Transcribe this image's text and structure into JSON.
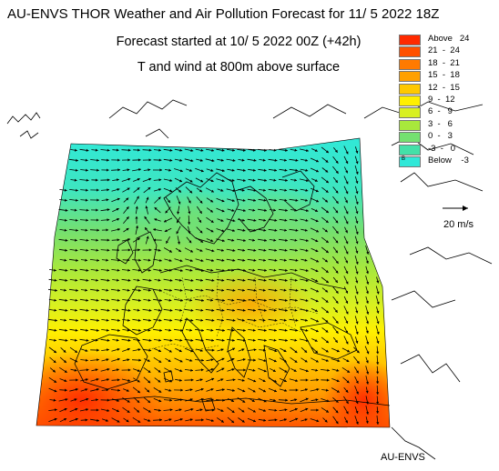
{
  "header": {
    "title": "AU-ENVS THOR Weather and Air Pollution Forecast for 11/ 5 2022  18Z",
    "forecast_line": "Forecast started at 10/ 5 2022  00Z (+42h)",
    "field_line": "T and wind at 800m above surface"
  },
  "legend": {
    "items": [
      {
        "label": "Above   24",
        "color": "#ff2a00"
      },
      {
        "label": "21  -  24",
        "color": "#ff5000"
      },
      {
        "label": "18  -  21",
        "color": "#ff7a00"
      },
      {
        "label": "15  -  18",
        "color": "#ffa000"
      },
      {
        "label": "12  -  15",
        "color": "#ffc800"
      },
      {
        "label": "9  -  12",
        "color": "#fff000"
      },
      {
        "label": "6  -   9",
        "color": "#d8f020"
      },
      {
        "label": "3  -   6",
        "color": "#a8e83c"
      },
      {
        "label": "0  -   3",
        "color": "#74e070"
      },
      {
        "label": "-3  -   0",
        "color": "#44e0a8"
      },
      {
        "label": "Below    -3",
        "color": "#30e8d8"
      }
    ],
    "below_marker": "B"
  },
  "wind_reference": {
    "label": "20 m/s"
  },
  "footer": {
    "label": "AU-ENVS"
  }
}
